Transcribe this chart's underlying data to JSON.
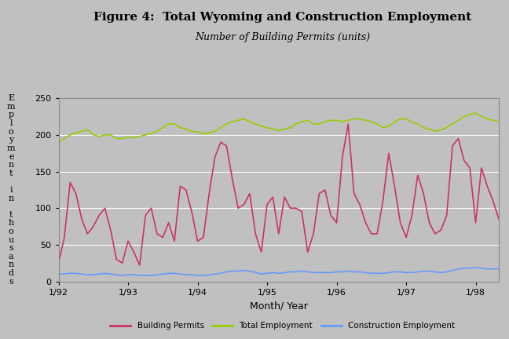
{
  "title": "Figure 4:  Total Wyoming and Construction Employment",
  "subtitle": "Number of Building Permits (units)",
  "xlabel": "Month/ Year",
  "background_color": "#c0c0c0",
  "plot_bg_color": "#c0c0c0",
  "ylim": [
    0,
    250
  ],
  "yticks": [
    0,
    50,
    100,
    150,
    200,
    250
  ],
  "xtick_labels": [
    "1/92",
    "1/93",
    "1/94",
    "1/95",
    "1/96",
    "1/97",
    "1/98"
  ],
  "xtick_positions": [
    0,
    12,
    24,
    36,
    48,
    60,
    72
  ],
  "legend_labels": [
    "Building Permits",
    "Total Employment",
    "Construction Employment"
  ],
  "line_colors": [
    "#cc3366",
    "#99cc00",
    "#6699ff"
  ],
  "ylabel_chars": [
    "E",
    "m",
    "p",
    "l",
    "o",
    "y",
    "m",
    "e",
    "n",
    "t",
    "",
    "i",
    "n",
    "",
    "t",
    "h",
    "o",
    "u",
    "s",
    "a",
    "n",
    "d",
    "s"
  ],
  "building_permits": [
    25,
    60,
    135,
    120,
    85,
    65,
    75,
    90,
    100,
    70,
    30,
    25,
    55,
    40,
    22,
    90,
    100,
    65,
    60,
    80,
    55,
    130,
    125,
    95,
    55,
    60,
    120,
    170,
    190,
    185,
    140,
    100,
    105,
    120,
    65,
    40,
    105,
    115,
    65,
    115,
    100,
    100,
    95,
    40,
    65,
    120,
    125,
    90,
    80,
    170,
    215,
    120,
    105,
    80,
    65,
    65,
    110,
    175,
    130,
    80,
    60,
    90,
    145,
    120,
    80,
    65,
    70,
    90,
    185,
    195,
    165,
    155,
    80,
    155,
    130,
    110,
    85
  ],
  "total_employment": [
    190,
    195,
    200,
    203,
    205,
    207,
    200,
    198,
    200,
    200,
    195,
    195,
    197,
    196,
    198,
    200,
    202,
    205,
    210,
    215,
    215,
    210,
    208,
    205,
    204,
    202,
    203,
    205,
    210,
    215,
    218,
    220,
    222,
    218,
    215,
    212,
    210,
    208,
    206,
    208,
    210,
    215,
    218,
    220,
    215,
    215,
    218,
    220,
    220,
    218,
    220,
    222,
    222,
    220,
    218,
    215,
    210,
    212,
    218,
    222,
    222,
    218,
    215,
    210,
    208,
    205,
    207,
    210,
    215,
    220,
    225,
    228,
    230,
    225,
    222,
    220,
    218
  ],
  "construction_employment": [
    10,
    10,
    11,
    11,
    10,
    9,
    9,
    10,
    11,
    10,
    9,
    8,
    9,
    9,
    8,
    8,
    8,
    9,
    10,
    11,
    11,
    10,
    9,
    9,
    8,
    8,
    9,
    10,
    11,
    13,
    14,
    14,
    15,
    14,
    12,
    10,
    11,
    12,
    11,
    12,
    13,
    13,
    14,
    13,
    12,
    12,
    12,
    12,
    13,
    13,
    14,
    13,
    13,
    12,
    11,
    11,
    11,
    12,
    13,
    13,
    12,
    12,
    13,
    14,
    14,
    13,
    12,
    13,
    15,
    17,
    18,
    18,
    19,
    18,
    17,
    17,
    17
  ]
}
